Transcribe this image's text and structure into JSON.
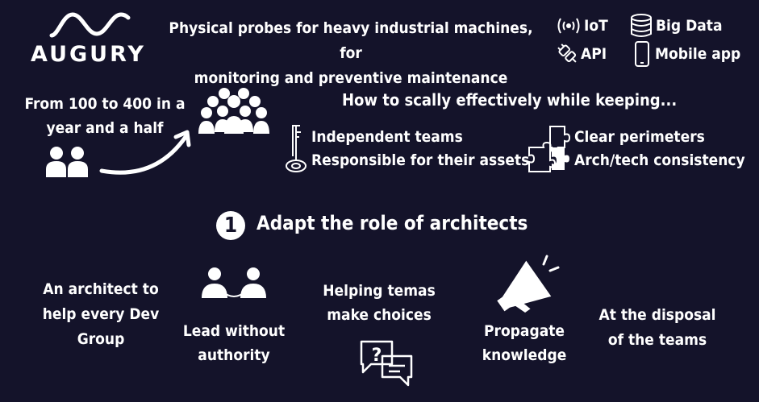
{
  "brand": {
    "name": "AUGURY"
  },
  "header": {
    "description_line1": "Physical probes for heavy industrial machines, for",
    "description_line2": "monitoring and preventive maintenance",
    "tags": [
      {
        "label": "IoT",
        "icon": "wireless-signal-icon"
      },
      {
        "label": "Big Data",
        "icon": "database-icon"
      },
      {
        "label": "API",
        "icon": "plug-icon"
      },
      {
        "label": "Mobile app",
        "icon": "smartphone-icon"
      }
    ]
  },
  "growth": {
    "line1": "From 100 to 400 in a",
    "line2": "year and a half"
  },
  "scaling": {
    "title": "How to scally effectively while keeping...",
    "left_items": [
      "Independent teams",
      "Responsible for their assets"
    ],
    "right_items": [
      "Clear perimeters",
      "Arch/tech consistency"
    ]
  },
  "section": {
    "number": "1",
    "title": "Adapt the role of architects"
  },
  "roles": [
    {
      "lines": [
        "An architect to",
        "help every Dev",
        "Group"
      ]
    },
    {
      "lines": [
        "Lead without",
        "authority"
      ]
    },
    {
      "lines": [
        "Helping temas",
        "make choices"
      ]
    },
    {
      "lines": [
        "Propagate",
        "knowledge"
      ]
    },
    {
      "lines": [
        "At the disposal",
        "of the teams"
      ]
    }
  ],
  "colors": {
    "background": "#14132a",
    "foreground": "#ffffff"
  }
}
